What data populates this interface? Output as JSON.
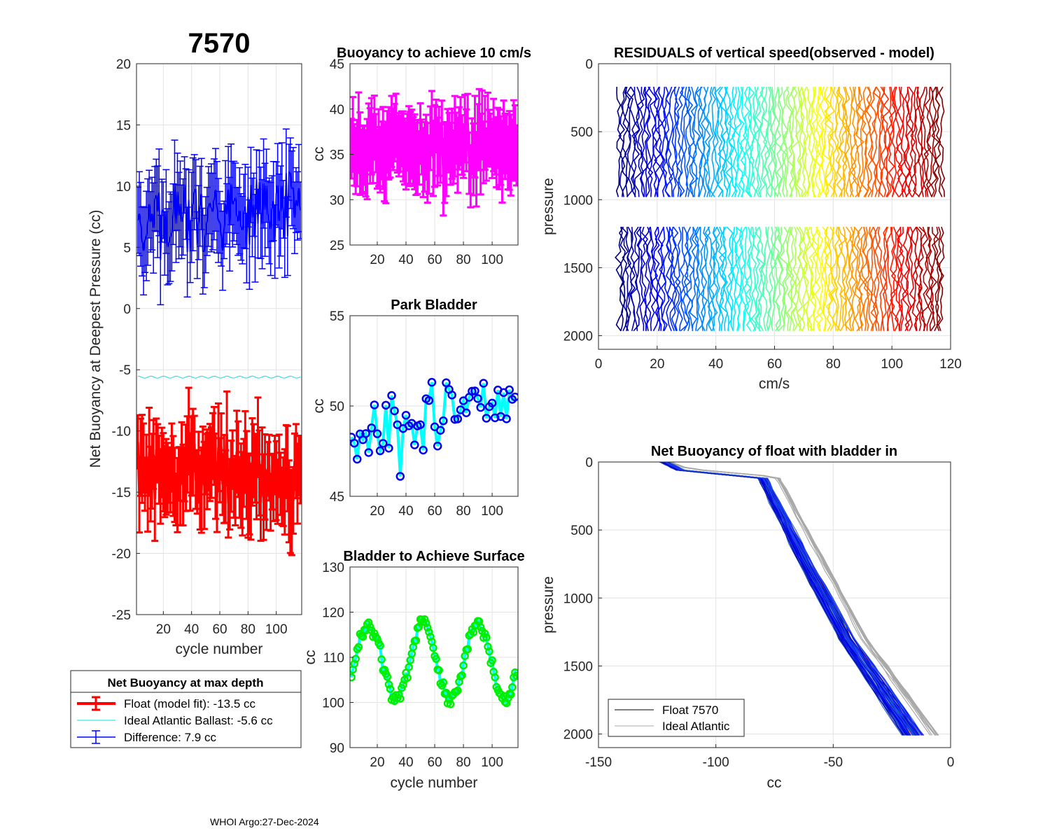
{
  "figure": {
    "footer": "WHOI Argo:27-Dec-2024"
  },
  "chart_data": [
    {
      "id": "net_buoyancy_deepest",
      "type": "line",
      "title": "7570",
      "xlabel": "cycle number",
      "ylabel": "Net Buoyancy at Deepest Pressure (cc)",
      "xlim": [
        1,
        118
      ],
      "ylim": [
        -25,
        20
      ],
      "xticks": [
        20,
        40,
        60,
        80,
        100
      ],
      "yticks": [
        -25,
        -20,
        -15,
        -10,
        -5,
        0,
        5,
        10,
        15,
        20
      ],
      "grid": true,
      "series": [
        {
          "name": "Float (model fit): -13.5 cc",
          "color": "#ff0000",
          "errorbar": true,
          "x_range": [
            2,
            117
          ],
          "mean": -13.5,
          "spread": 2.8,
          "trend": -0.015,
          "err": 3.0
        },
        {
          "name": "Ideal Atlantic Ballast:  -5.6 cc",
          "color": "#00e5e5",
          "errorbar": false,
          "x_range": [
            2,
            117
          ],
          "mean": -5.6,
          "spread": 0.08,
          "trend": 0,
          "err": 0
        },
        {
          "name": "Difference:   7.9 cc",
          "color": "#0000ff",
          "errorbar": true,
          "x_range": [
            2,
            117
          ],
          "mean": 7.9,
          "spread": 2.8,
          "trend": 0.018,
          "err": 3.2
        }
      ],
      "legend": {
        "title": "Net Buoyancy at max depth",
        "entries": [
          "Float (model fit): -13.5 cc",
          "Ideal Atlantic Ballast:  -5.6 cc",
          "Difference:   7.9 cc"
        ]
      }
    },
    {
      "id": "buoyancy_10cms",
      "type": "line",
      "title": "Buoyancy to achieve 10 cm/s",
      "xlabel": "",
      "ylabel": "cc",
      "xlim": [
        1,
        118
      ],
      "ylim": [
        25,
        45
      ],
      "xticks": [
        20,
        40,
        60,
        80,
        100
      ],
      "yticks": [
        25,
        30,
        35,
        40,
        45
      ],
      "grid": true,
      "series": [
        {
          "name": "buoyancy",
          "color": "#ff00ff",
          "errorbar": true,
          "x_range": [
            2,
            117
          ],
          "mean": 36,
          "spread": 2.5,
          "err": 3.5
        }
      ]
    },
    {
      "id": "park_bladder",
      "type": "line",
      "title": "Park Bladder",
      "xlabel": "",
      "ylabel": "cc",
      "xlim": [
        1,
        118
      ],
      "ylim": [
        45,
        55
      ],
      "xticks": [
        20,
        40,
        60,
        80,
        100
      ],
      "yticks": [
        45,
        50,
        55
      ],
      "grid": true,
      "series": [
        {
          "name": "park bladder",
          "color": "#00ffff",
          "marker_color": "#0000ee",
          "x_range": [
            2,
            117
          ],
          "base": 48.2,
          "slope": 0.022,
          "spread": 1.8
        }
      ]
    },
    {
      "id": "bladder_surface",
      "type": "line",
      "title": "Bladder to Achieve Surface",
      "xlabel": "cycle number",
      "ylabel": "cc",
      "xlim": [
        1,
        118
      ],
      "ylim": [
        90,
        130
      ],
      "xticks": [
        20,
        40,
        60,
        80,
        100
      ],
      "yticks": [
        90,
        100,
        110,
        120,
        130
      ],
      "grid": true,
      "series": [
        {
          "name": "surface bladder",
          "color": "#00ffff",
          "marker_color": "#00ee00",
          "x_range": [
            2,
            117
          ],
          "mean": 109,
          "amplitude": 8.5,
          "period": 38,
          "peak_cycle": 14
        }
      ]
    },
    {
      "id": "residuals",
      "type": "line",
      "title": "RESIDUALS of vertical speed(observed - model)",
      "xlabel": "cm/s",
      "ylabel": "pressure",
      "xlim": [
        0,
        120
      ],
      "ylim": [
        0,
        2100
      ],
      "y_reversed": true,
      "xticks": [
        0,
        20,
        40,
        60,
        80,
        100,
        120
      ],
      "yticks": [
        0,
        500,
        1000,
        1500,
        2000
      ],
      "grid": true,
      "profiles": {
        "count": 118,
        "offset_start": 7,
        "offset_end": 117,
        "segments": [
          [
            170,
            1010
          ],
          [
            1200,
            2000
          ]
        ],
        "colormap": "jet"
      }
    },
    {
      "id": "net_buoyancy_bladder_in",
      "type": "line",
      "title": "Net Buoyancy of float with bladder in",
      "xlabel": "cc",
      "ylabel": "pressure",
      "xlim": [
        -150,
        0
      ],
      "ylim": [
        0,
        2100
      ],
      "y_reversed": true,
      "xticks": [
        -150,
        -100,
        -50,
        0
      ],
      "yticks": [
        0,
        500,
        1000,
        1500,
        2000
      ],
      "grid": true,
      "profiles": {
        "float_key_points": [
          [
            -122,
            0
          ],
          [
            -115,
            60
          ],
          [
            -80,
            120
          ],
          [
            -60,
            800
          ],
          [
            -44,
            1300
          ],
          [
            -16,
            2010
          ]
        ],
        "ideal_key_points": [
          [
            -120,
            0
          ],
          [
            -112,
            50
          ],
          [
            -74,
            110
          ],
          [
            -53,
            780
          ],
          [
            -37,
            1300
          ],
          [
            -7,
            2010
          ]
        ],
        "float_count": 60,
        "ideal_count": 12,
        "float_color": "#0000cc",
        "ideal_color": "#a9a9a9"
      },
      "legend": {
        "entries": [
          "Float 7570",
          "Ideal Atlantic"
        ]
      }
    }
  ]
}
